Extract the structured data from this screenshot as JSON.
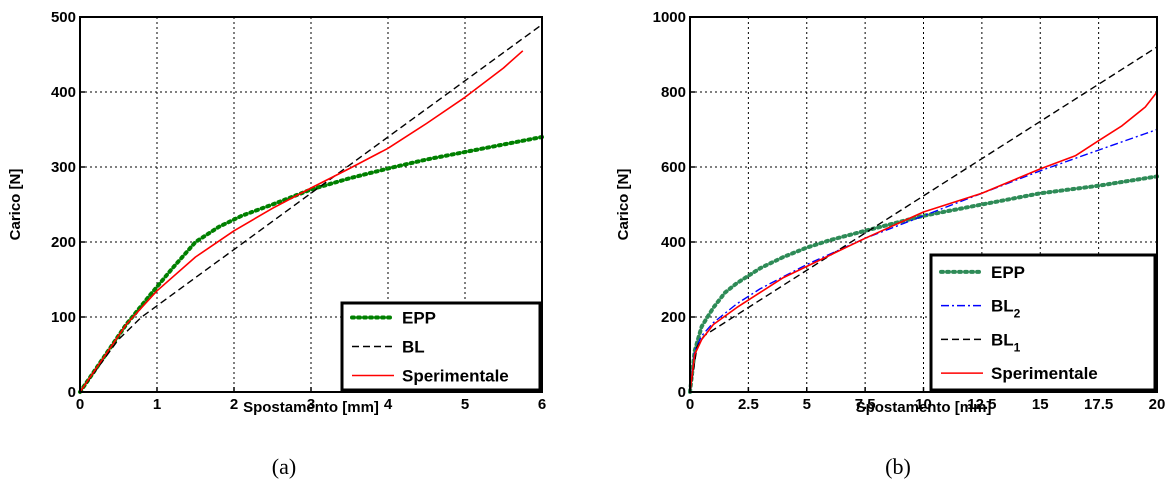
{
  "chart_data": [
    {
      "type": "line",
      "panel": "(a)",
      "xlabel": "Spostamento [mm]",
      "ylabel": "Carico [N]",
      "xlim": [
        0,
        6
      ],
      "ylim": [
        0,
        500
      ],
      "xticks": [
        0,
        1,
        2,
        3,
        4,
        5,
        6
      ],
      "yticks": [
        0,
        100,
        200,
        300,
        400,
        500
      ],
      "grid": true,
      "legend_position": "bottom-right",
      "series": [
        {
          "name": "EPP",
          "color": "#008000",
          "style": "dotted",
          "x": [
            0,
            0.3,
            0.6,
            0.9,
            1.2,
            1.5,
            1.8,
            2.1,
            2.5,
            3.0,
            3.5,
            4.0,
            4.5,
            5.0,
            5.5,
            6.0
          ],
          "y": [
            0,
            45,
            90,
            128,
            165,
            200,
            220,
            235,
            250,
            270,
            285,
            298,
            310,
            320,
            330,
            340
          ]
        },
        {
          "name": "BL",
          "color": "#000000",
          "style": "dashed",
          "x": [
            0,
            0.5,
            0.8,
            6.0
          ],
          "y": [
            0,
            70,
            100,
            490
          ]
        },
        {
          "name": "Sperimentale",
          "color": "#ff0000",
          "style": "solid",
          "x": [
            0,
            0.3,
            0.6,
            1.0,
            1.5,
            2.0,
            2.5,
            3.0,
            3.5,
            4.0,
            4.5,
            5.0,
            5.5,
            5.75
          ],
          "y": [
            0,
            45,
            90,
            135,
            180,
            215,
            245,
            272,
            298,
            325,
            358,
            393,
            432,
            455
          ]
        }
      ]
    },
    {
      "type": "line",
      "panel": "(b)",
      "xlabel": "Spostamento [mm]",
      "ylabel": "Carico [N]",
      "xlim": [
        0,
        20
      ],
      "ylim": [
        0,
        1000
      ],
      "xticks": [
        0,
        2.5,
        5,
        7.5,
        10,
        12.5,
        15,
        17.5,
        20
      ],
      "yticks": [
        0,
        200,
        400,
        600,
        800,
        1000
      ],
      "grid": true,
      "legend_position": "bottom-right",
      "series": [
        {
          "name": "EPP",
          "color": "#2e8b57",
          "style": "dotted",
          "x": [
            0,
            0.2,
            0.5,
            1,
            1.5,
            2,
            3,
            4,
            5,
            6,
            7.5,
            10,
            12.5,
            15,
            17.5,
            20
          ],
          "y": [
            0,
            110,
            175,
            225,
            265,
            290,
            330,
            360,
            385,
            405,
            430,
            470,
            500,
            530,
            550,
            575
          ]
        },
        {
          "name": "BL",
          "subscript": "2",
          "color": "#0000ff",
          "style": "dashdot",
          "x": [
            0,
            0.2,
            0.5,
            1,
            2,
            3,
            5,
            7.5,
            10,
            12.5,
            15,
            17.5,
            20
          ],
          "y": [
            0,
            110,
            150,
            185,
            235,
            275,
            340,
            410,
            470,
            530,
            590,
            645,
            700
          ]
        },
        {
          "name": "BL",
          "subscript": "1",
          "color": "#000000",
          "style": "dashed",
          "x": [
            0,
            0.3,
            0.6,
            20
          ],
          "y": [
            0,
            120,
            150,
            920
          ]
        },
        {
          "name": "Sperimentale",
          "color": "#ff0000",
          "style": "solid",
          "x": [
            0,
            0.2,
            0.5,
            1,
            2,
            3,
            4,
            5,
            6,
            7.5,
            10,
            12.5,
            15,
            16.5,
            17.5,
            18.5,
            19.5,
            20
          ],
          "y": [
            0,
            100,
            140,
            180,
            225,
            265,
            305,
            335,
            365,
            410,
            480,
            530,
            595,
            630,
            670,
            710,
            760,
            800
          ]
        }
      ]
    }
  ]
}
